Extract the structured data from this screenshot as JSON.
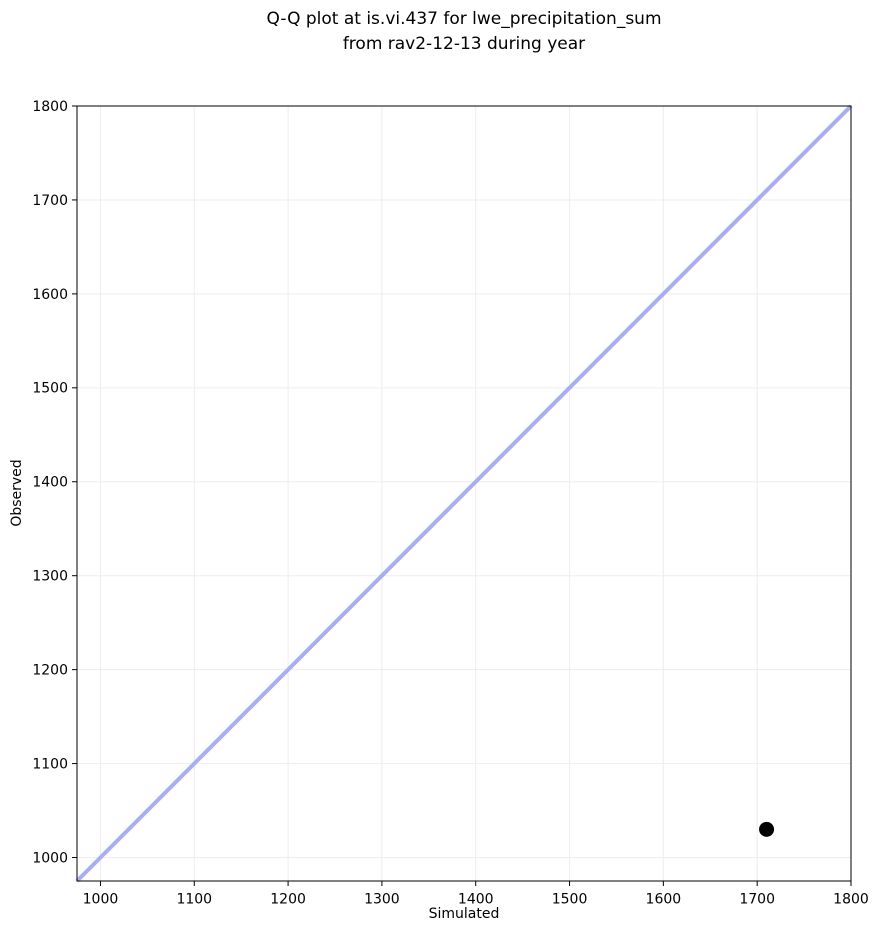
{
  "figure": {
    "background": "#ffffff"
  },
  "chart_data": {
    "type": "scatter",
    "title_lines": [
      "Q-Q plot at is.vi.437 for lwe_precipitation_sum",
      "from rav2-12-13 during year"
    ],
    "xlabel": "Simulated",
    "ylabel": "Observed",
    "xlim": [
      975,
      1800
    ],
    "ylim": [
      975,
      1800
    ],
    "xticks": [
      1000,
      1100,
      1200,
      1300,
      1400,
      1500,
      1600,
      1700,
      1800
    ],
    "yticks": [
      1000,
      1100,
      1200,
      1300,
      1400,
      1500,
      1600,
      1700,
      1800
    ],
    "grid": true,
    "legend": "none",
    "points": [
      {
        "x": 1710,
        "y": 1030
      }
    ],
    "identity_line": {
      "from": [
        975,
        975
      ],
      "to": [
        1800,
        1800
      ]
    },
    "colors": {
      "identity_line": "#a9aef2",
      "point": "#000000",
      "grid": "#ededed",
      "spine": "#000000",
      "text": "#000000",
      "background": "#ffffff"
    }
  }
}
